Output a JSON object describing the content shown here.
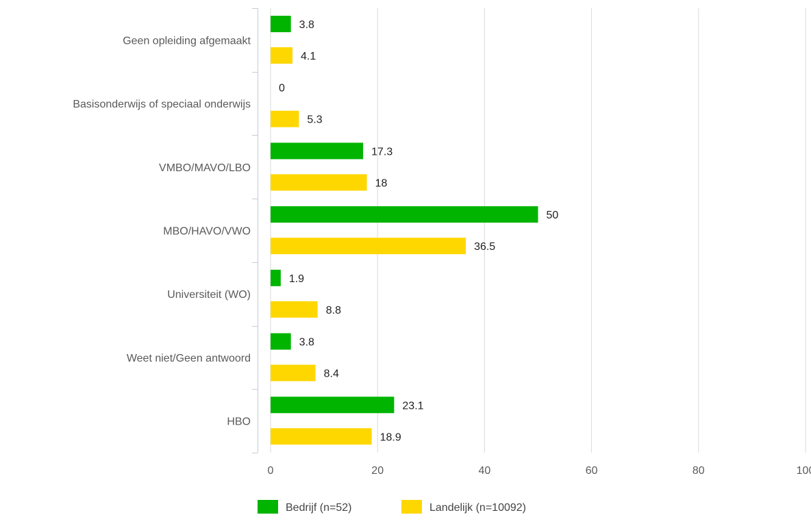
{
  "chart_data": {
    "type": "bar",
    "orientation": "horizontal",
    "title": "",
    "xlabel": "",
    "ylabel": "",
    "categories": [
      "Geen opleiding afgemaakt",
      "Basisonderwijs of speciaal onderwijs",
      "VMBO/MAVO/LBO",
      "MBO/HAVO/VWO",
      "Universiteit (WO)",
      "Weet niet/Geen antwoord",
      "HBO"
    ],
    "series": [
      {
        "name": "Bedrijf (n=52)",
        "color": "#00b400",
        "values": [
          3.8,
          0,
          17.3,
          50,
          1.9,
          3.8,
          23.1
        ],
        "labels": [
          "3.8",
          "0",
          "17.3",
          "50",
          "1.9",
          "3.8",
          "23.1"
        ]
      },
      {
        "name": "Landelijk (n=10092)",
        "color": "#ffd700",
        "values": [
          4.1,
          5.3,
          18,
          36.5,
          8.8,
          8.4,
          18.9
        ],
        "labels": [
          "4.1",
          "5.3",
          "18",
          "36.5",
          "8.8",
          "8.4",
          "18.9"
        ]
      }
    ],
    "xlim": [
      0,
      100
    ],
    "xticks": [
      0,
      20,
      40,
      60,
      80,
      100
    ],
    "xtick_labels": [
      "0",
      "20",
      "40",
      "60",
      "80",
      "100"
    ],
    "grid": true,
    "legend_position": "bottom",
    "colors": {
      "grid": "#d9d9d9",
      "axis": "#c3ccd8",
      "category_text": "#5a5a5a",
      "data_label_text": "#222222"
    }
  }
}
